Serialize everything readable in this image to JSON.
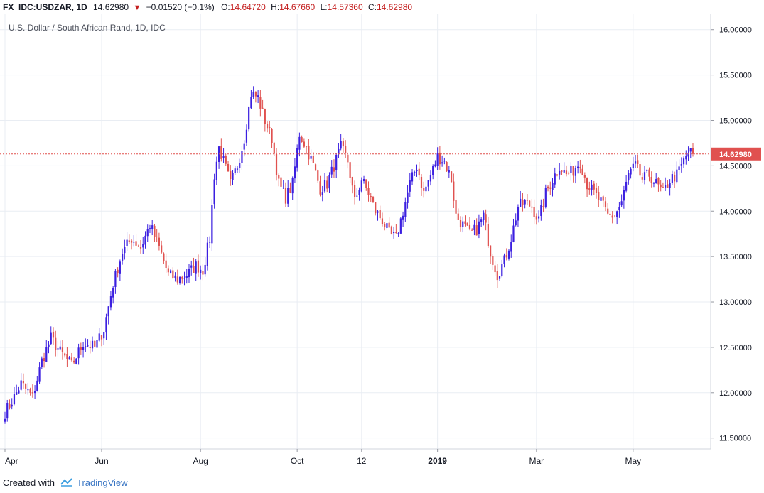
{
  "header": {
    "symbol": "FX_IDC:USDZAR, 1D",
    "close_value": "14.62980",
    "arrow": "▼",
    "change": "−0.01520 (−0.1%)",
    "open_label": "O:",
    "open_value": "14.64720",
    "high_label": "H:",
    "high_value": "14.67660",
    "low_label": "L:",
    "low_value": "14.57360",
    "close_label": "C:",
    "close_value2": "14.62980"
  },
  "footer": {
    "created_with": "Created with",
    "brand": "TradingView"
  },
  "colors": {
    "up": "#3b1fe0",
    "down": "#e0514f",
    "price_line": "#e0514f",
    "price_tag_bg": "#e0514f",
    "grid": "#e9edf3"
  },
  "chart_data": {
    "type": "candlestick",
    "title": "U.S. Dollar / South African Rand, 1D, IDC",
    "last_price": "14.62980",
    "ylim": [
      11.38,
      16.17
    ],
    "y_ticks": [
      "11.50000",
      "12.00000",
      "12.50000",
      "13.00000",
      "13.50000",
      "14.00000",
      "14.50000",
      "15.00000",
      "15.50000",
      "16.00000"
    ],
    "x_ticks": [
      "Apr",
      "Jun",
      "Aug",
      "Oct",
      "12",
      "2019",
      "Mar",
      "May"
    ],
    "grid": true,
    "trend_points": [
      [
        0,
        11.78
      ],
      [
        4,
        11.95
      ],
      [
        7,
        12.1
      ],
      [
        12,
        11.95
      ],
      [
        16,
        12.35
      ],
      [
        20,
        12.6
      ],
      [
        24,
        12.45
      ],
      [
        29,
        12.3
      ],
      [
        34,
        12.55
      ],
      [
        39,
        12.5
      ],
      [
        43,
        12.7
      ],
      [
        47,
        13.2
      ],
      [
        51,
        13.55
      ],
      [
        55,
        13.7
      ],
      [
        59,
        13.6
      ],
      [
        63,
        13.85
      ],
      [
        67,
        13.6
      ],
      [
        71,
        13.3
      ],
      [
        75,
        13.25
      ],
      [
        79,
        13.3
      ],
      [
        83,
        13.4
      ],
      [
        86,
        13.35
      ],
      [
        89,
        13.7
      ],
      [
        91,
        14.4
      ],
      [
        93,
        14.7
      ],
      [
        95,
        14.55
      ],
      [
        98,
        14.3
      ],
      [
        101,
        14.5
      ],
      [
        104,
        14.8
      ],
      [
        107,
        15.3
      ],
      [
        110,
        15.25
      ],
      [
        113,
        15.0
      ],
      [
        116,
        14.8
      ],
      [
        119,
        14.3
      ],
      [
        122,
        14.15
      ],
      [
        125,
        14.3
      ],
      [
        128,
        14.85
      ],
      [
        131,
        14.7
      ],
      [
        134,
        14.5
      ],
      [
        137,
        14.25
      ],
      [
        140,
        14.3
      ],
      [
        143,
        14.5
      ],
      [
        146,
        14.7
      ],
      [
        149,
        14.55
      ],
      [
        152,
        14.1
      ],
      [
        155,
        14.35
      ],
      [
        158,
        14.2
      ],
      [
        161,
        14.0
      ],
      [
        164,
        13.9
      ],
      [
        167,
        13.75
      ],
      [
        170,
        13.7
      ],
      [
        173,
        14.0
      ],
      [
        176,
        14.3
      ],
      [
        179,
        14.5
      ],
      [
        182,
        14.2
      ],
      [
        185,
        14.4
      ],
      [
        188,
        14.6
      ],
      [
        191,
        14.55
      ],
      [
        194,
        14.35
      ],
      [
        196,
        13.95
      ],
      [
        199,
        13.85
      ],
      [
        202,
        13.75
      ],
      [
        205,
        13.8
      ],
      [
        208,
        13.95
      ],
      [
        211,
        13.55
      ],
      [
        214,
        13.3
      ],
      [
        217,
        13.45
      ],
      [
        220,
        13.7
      ],
      [
        223,
        14.05
      ],
      [
        226,
        14.1
      ],
      [
        229,
        14.05
      ],
      [
        232,
        13.9
      ],
      [
        235,
        14.2
      ],
      [
        238,
        14.35
      ],
      [
        241,
        14.5
      ],
      [
        244,
        14.4
      ],
      [
        247,
        14.45
      ],
      [
        250,
        14.55
      ],
      [
        253,
        14.3
      ],
      [
        256,
        14.2
      ],
      [
        259,
        14.1
      ],
      [
        262,
        13.95
      ],
      [
        265,
        13.95
      ],
      [
        268,
        14.1
      ],
      [
        271,
        14.4
      ],
      [
        274,
        14.5
      ],
      [
        277,
        14.35
      ],
      [
        280,
        14.4
      ],
      [
        283,
        14.3
      ],
      [
        286,
        14.2
      ],
      [
        289,
        14.35
      ],
      [
        292,
        14.4
      ],
      [
        295,
        14.55
      ],
      [
        297,
        14.65
      ],
      [
        299,
        14.63
      ]
    ],
    "n_candles": 300
  }
}
